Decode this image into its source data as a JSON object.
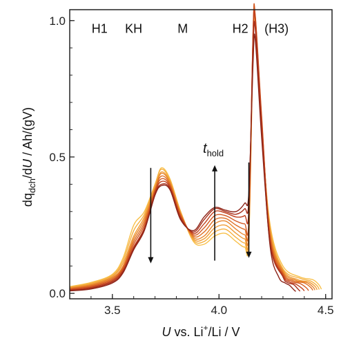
{
  "chart_data": {
    "type": "line",
    "xlabel": {
      "italic": "U",
      "pre": " vs. Li",
      "sup": "+",
      "post": "/Li / V"
    },
    "ylabel": {
      "pre": "dq",
      "sub": "dch",
      "mid": "/d",
      "italic": "U",
      "post": " / Ah/(gV)"
    },
    "xlim": [
      3.3,
      4.53
    ],
    "ylim": [
      -0.02,
      1.04
    ],
    "xticks": [
      {
        "value": 3.5,
        "label": "3.5"
      },
      {
        "value": 4.0,
        "label": "4.0"
      },
      {
        "value": 4.5,
        "label": "4.5"
      }
    ],
    "yticks": [
      {
        "value": 0.0,
        "label": "0.0"
      },
      {
        "value": 0.5,
        "label": "0.5"
      },
      {
        "value": 1.0,
        "label": "1.0"
      }
    ],
    "phase_labels": [
      {
        "text": "H1",
        "x": 3.44,
        "y": 0.97,
        "color": "#111111"
      },
      {
        "text": "KH",
        "x": 3.6,
        "y": 0.97,
        "color": "#888888"
      },
      {
        "text": "M",
        "x": 3.83,
        "y": 0.97,
        "color": "#111111"
      },
      {
        "text": "H2",
        "x": 4.1,
        "y": 0.97,
        "color": "#111111"
      },
      {
        "text": "(H3)",
        "x": 4.27,
        "y": 0.97,
        "color": "#111111"
      }
    ],
    "annotation": {
      "text": "t",
      "sub": "hold",
      "x": 3.98,
      "y": 0.51
    },
    "arrows": [
      {
        "x": 3.68,
        "from": 0.46,
        "to": 0.11,
        "direction": "down"
      },
      {
        "x": 3.98,
        "from": 0.12,
        "to": 0.47,
        "direction": "up"
      },
      {
        "x": 4.14,
        "from": 0.48,
        "to": 0.13,
        "direction": "down"
      }
    ],
    "legend": "none",
    "grid": false,
    "series": [
      {
        "color": "#F8C04A",
        "points": [
          [
            3.3,
            0.025
          ],
          [
            3.4,
            0.04
          ],
          [
            3.5,
            0.07
          ],
          [
            3.55,
            0.13
          ],
          [
            3.6,
            0.25
          ],
          [
            3.65,
            0.3
          ],
          [
            3.7,
            0.4
          ],
          [
            3.73,
            0.46
          ],
          [
            3.77,
            0.42
          ],
          [
            3.82,
            0.3
          ],
          [
            3.88,
            0.19
          ],
          [
            3.93,
            0.18
          ],
          [
            3.98,
            0.21
          ],
          [
            4.03,
            0.22
          ],
          [
            4.08,
            0.19
          ],
          [
            4.12,
            0.17
          ],
          [
            4.14,
            0.2
          ],
          [
            4.16,
            0.9
          ],
          [
            4.17,
            0.98
          ],
          [
            4.2,
            0.6
          ],
          [
            4.24,
            0.25
          ],
          [
            4.3,
            0.1
          ],
          [
            4.38,
            0.06
          ],
          [
            4.44,
            0.05
          ],
          [
            4.47,
            0.03
          ],
          [
            4.48,
            0.015
          ]
        ]
      },
      {
        "color": "#F5B040",
        "points": [
          [
            3.3,
            0.023
          ],
          [
            3.4,
            0.037
          ],
          [
            3.5,
            0.066
          ],
          [
            3.55,
            0.12
          ],
          [
            3.6,
            0.23
          ],
          [
            3.65,
            0.29
          ],
          [
            3.7,
            0.4
          ],
          [
            3.73,
            0.455
          ],
          [
            3.77,
            0.415
          ],
          [
            3.82,
            0.3
          ],
          [
            3.88,
            0.195
          ],
          [
            3.93,
            0.19
          ],
          [
            3.98,
            0.225
          ],
          [
            4.03,
            0.235
          ],
          [
            4.08,
            0.205
          ],
          [
            4.12,
            0.185
          ],
          [
            4.14,
            0.21
          ],
          [
            4.16,
            0.92
          ],
          [
            4.17,
            0.99
          ],
          [
            4.2,
            0.61
          ],
          [
            4.24,
            0.24
          ],
          [
            4.3,
            0.09
          ],
          [
            4.38,
            0.055
          ],
          [
            4.43,
            0.045
          ],
          [
            4.46,
            0.028
          ],
          [
            4.47,
            0.014
          ]
        ]
      },
      {
        "color": "#EF9C36",
        "points": [
          [
            3.3,
            0.021
          ],
          [
            3.4,
            0.034
          ],
          [
            3.5,
            0.062
          ],
          [
            3.55,
            0.11
          ],
          [
            3.6,
            0.21
          ],
          [
            3.65,
            0.28
          ],
          [
            3.7,
            0.39
          ],
          [
            3.73,
            0.445
          ],
          [
            3.77,
            0.41
          ],
          [
            3.82,
            0.295
          ],
          [
            3.88,
            0.2
          ],
          [
            3.93,
            0.2
          ],
          [
            3.98,
            0.24
          ],
          [
            4.03,
            0.25
          ],
          [
            4.08,
            0.22
          ],
          [
            4.12,
            0.2
          ],
          [
            4.14,
            0.22
          ],
          [
            4.16,
            0.94
          ],
          [
            4.17,
            1.0
          ],
          [
            4.2,
            0.62
          ],
          [
            4.24,
            0.23
          ],
          [
            4.3,
            0.085
          ],
          [
            4.37,
            0.05
          ],
          [
            4.42,
            0.042
          ],
          [
            4.45,
            0.026
          ],
          [
            4.46,
            0.013
          ]
        ]
      },
      {
        "color": "#E8852C",
        "points": [
          [
            3.3,
            0.019
          ],
          [
            3.4,
            0.031
          ],
          [
            3.5,
            0.058
          ],
          [
            3.55,
            0.1
          ],
          [
            3.6,
            0.2
          ],
          [
            3.65,
            0.27
          ],
          [
            3.7,
            0.385
          ],
          [
            3.73,
            0.44
          ],
          [
            3.77,
            0.405
          ],
          [
            3.82,
            0.29
          ],
          [
            3.88,
            0.205
          ],
          [
            3.93,
            0.21
          ],
          [
            3.98,
            0.255
          ],
          [
            4.03,
            0.265
          ],
          [
            4.08,
            0.235
          ],
          [
            4.12,
            0.215
          ],
          [
            4.14,
            0.235
          ],
          [
            4.16,
            0.95
          ],
          [
            4.17,
            1.01
          ],
          [
            4.2,
            0.63
          ],
          [
            4.24,
            0.22
          ],
          [
            4.3,
            0.08
          ],
          [
            4.36,
            0.048
          ],
          [
            4.41,
            0.04
          ],
          [
            4.44,
            0.024
          ],
          [
            4.45,
            0.012
          ]
        ]
      },
      {
        "color": "#DE6E24",
        "points": [
          [
            3.3,
            0.017
          ],
          [
            3.4,
            0.028
          ],
          [
            3.5,
            0.054
          ],
          [
            3.55,
            0.095
          ],
          [
            3.6,
            0.19
          ],
          [
            3.65,
            0.26
          ],
          [
            3.7,
            0.38
          ],
          [
            3.73,
            0.43
          ],
          [
            3.77,
            0.4
          ],
          [
            3.82,
            0.29
          ],
          [
            3.88,
            0.21
          ],
          [
            3.93,
            0.225
          ],
          [
            3.98,
            0.27
          ],
          [
            4.03,
            0.275
          ],
          [
            4.08,
            0.25
          ],
          [
            4.12,
            0.235
          ],
          [
            4.14,
            0.25
          ],
          [
            4.16,
            0.96
          ],
          [
            4.17,
            1.015
          ],
          [
            4.2,
            0.64
          ],
          [
            4.24,
            0.21
          ],
          [
            4.3,
            0.075
          ],
          [
            4.35,
            0.046
          ],
          [
            4.4,
            0.038
          ],
          [
            4.43,
            0.022
          ],
          [
            4.44,
            0.011
          ]
        ]
      },
      {
        "color": "#D25820",
        "points": [
          [
            3.3,
            0.015
          ],
          [
            3.4,
            0.025
          ],
          [
            3.5,
            0.05
          ],
          [
            3.55,
            0.09
          ],
          [
            3.6,
            0.18
          ],
          [
            3.65,
            0.25
          ],
          [
            3.7,
            0.375
          ],
          [
            3.73,
            0.42
          ],
          [
            3.77,
            0.395
          ],
          [
            3.82,
            0.285
          ],
          [
            3.88,
            0.215
          ],
          [
            3.93,
            0.24
          ],
          [
            3.98,
            0.285
          ],
          [
            4.03,
            0.285
          ],
          [
            4.08,
            0.265
          ],
          [
            4.12,
            0.255
          ],
          [
            4.14,
            0.27
          ],
          [
            4.16,
            0.97
          ],
          [
            4.17,
            1.02
          ],
          [
            4.2,
            0.65
          ],
          [
            4.24,
            0.2
          ],
          [
            4.3,
            0.07
          ],
          [
            4.34,
            0.044
          ],
          [
            4.38,
            0.036
          ],
          [
            4.41,
            0.02
          ],
          [
            4.42,
            0.01
          ]
        ]
      },
      {
        "color": "#C0401E",
        "points": [
          [
            3.3,
            0.013
          ],
          [
            3.4,
            0.022
          ],
          [
            3.5,
            0.046
          ],
          [
            3.55,
            0.085
          ],
          [
            3.6,
            0.17
          ],
          [
            3.65,
            0.24
          ],
          [
            3.7,
            0.37
          ],
          [
            3.73,
            0.41
          ],
          [
            3.77,
            0.39
          ],
          [
            3.82,
            0.28
          ],
          [
            3.88,
            0.22
          ],
          [
            3.93,
            0.255
          ],
          [
            3.98,
            0.3
          ],
          [
            4.03,
            0.295
          ],
          [
            4.08,
            0.28
          ],
          [
            4.12,
            0.285
          ],
          [
            4.14,
            0.31
          ],
          [
            4.16,
            0.95
          ],
          [
            4.17,
            1.0
          ],
          [
            4.2,
            0.63
          ],
          [
            4.24,
            0.19
          ],
          [
            4.3,
            0.065
          ],
          [
            4.33,
            0.042
          ],
          [
            4.36,
            0.034
          ],
          [
            4.39,
            0.018
          ],
          [
            4.4,
            0.009
          ]
        ]
      },
      {
        "color": "#A8301C",
        "points": [
          [
            3.3,
            0.011
          ],
          [
            3.4,
            0.019
          ],
          [
            3.5,
            0.042
          ],
          [
            3.55,
            0.08
          ],
          [
            3.6,
            0.165
          ],
          [
            3.65,
            0.235
          ],
          [
            3.7,
            0.365
          ],
          [
            3.73,
            0.4
          ],
          [
            3.77,
            0.385
          ],
          [
            3.82,
            0.275
          ],
          [
            3.88,
            0.225
          ],
          [
            3.93,
            0.27
          ],
          [
            3.98,
            0.31
          ],
          [
            4.03,
            0.3
          ],
          [
            4.08,
            0.29
          ],
          [
            4.12,
            0.31
          ],
          [
            4.14,
            0.345
          ],
          [
            4.16,
            0.9
          ],
          [
            4.17,
            0.97
          ],
          [
            4.2,
            0.6
          ],
          [
            4.24,
            0.18
          ],
          [
            4.3,
            0.06
          ],
          [
            4.32,
            0.04
          ],
          [
            4.35,
            0.032
          ],
          [
            4.37,
            0.016
          ],
          [
            4.38,
            0.008
          ]
        ]
      },
      {
        "color": "#8C2418",
        "points": [
          [
            3.3,
            0.009
          ],
          [
            3.4,
            0.016
          ],
          [
            3.5,
            0.038
          ],
          [
            3.55,
            0.075
          ],
          [
            3.6,
            0.16
          ],
          [
            3.65,
            0.23
          ],
          [
            3.7,
            0.36
          ],
          [
            3.73,
            0.395
          ],
          [
            3.77,
            0.38
          ],
          [
            3.82,
            0.27
          ],
          [
            3.88,
            0.23
          ],
          [
            3.93,
            0.28
          ],
          [
            3.98,
            0.315
          ],
          [
            4.03,
            0.305
          ],
          [
            4.08,
            0.3
          ],
          [
            4.12,
            0.33
          ],
          [
            4.14,
            0.37
          ],
          [
            4.16,
            0.85
          ],
          [
            4.17,
            0.93
          ],
          [
            4.2,
            0.57
          ],
          [
            4.24,
            0.17
          ],
          [
            4.28,
            0.06
          ],
          [
            4.31,
            0.038
          ],
          [
            4.33,
            0.03
          ],
          [
            4.35,
            0.014
          ],
          [
            4.36,
            0.007
          ]
        ]
      }
    ]
  }
}
